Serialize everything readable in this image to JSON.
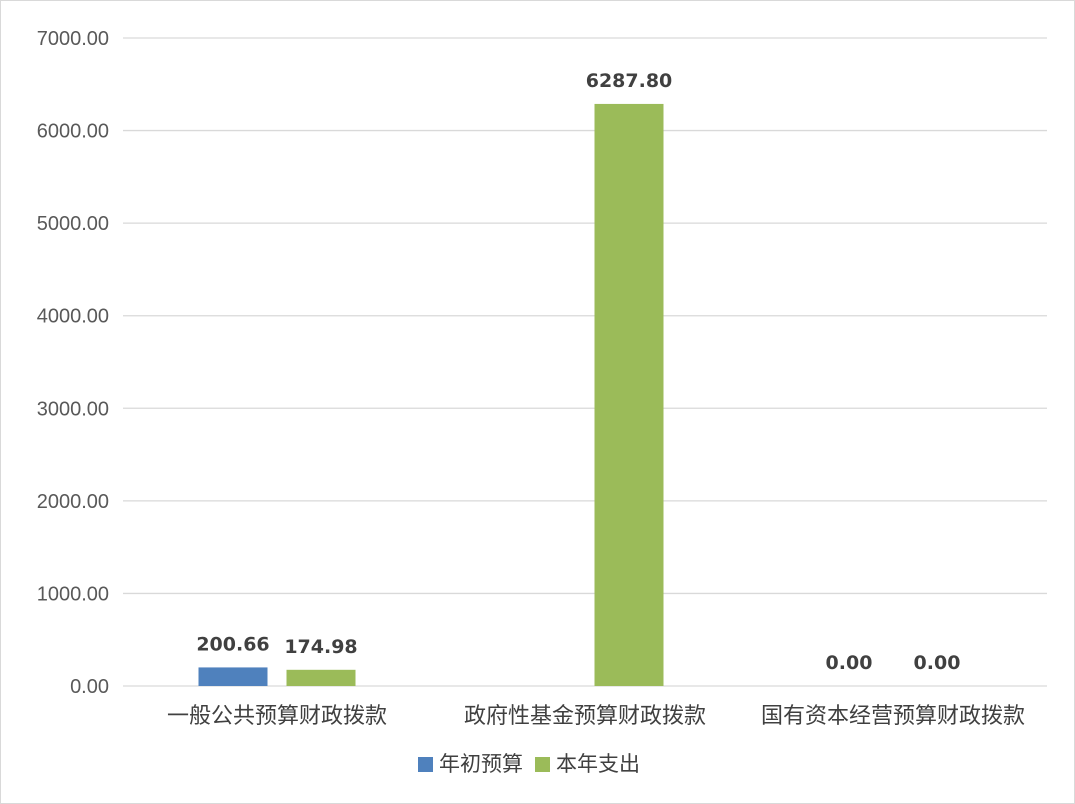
{
  "chart_data": {
    "type": "bar",
    "title": "",
    "xlabel": "",
    "ylabel": "",
    "categories": [
      "一般公共预算财政拨款",
      "政府性基金预算财政拨款",
      "国有资本经营预算财政拨款"
    ],
    "series": [
      {
        "name": "年初预算",
        "color": "#4f81bd",
        "values": [
          200.66,
          0.0,
          0.0
        ],
        "labels": [
          "200.66",
          "0.00",
          "0.00"
        ]
      },
      {
        "name": "本年支出",
        "color": "#9bbb59",
        "values": [
          174.98,
          6287.8,
          0.0
        ],
        "labels": [
          "174.98",
          "6287.80",
          "0.00"
        ]
      }
    ],
    "ylim": [
      0,
      7000
    ],
    "yticks": [
      0,
      1000,
      2000,
      3000,
      4000,
      5000,
      6000,
      7000
    ],
    "ytick_labels": [
      "0.00",
      "1000.00",
      "2000.00",
      "3000.00",
      "4000.00",
      "5000.00",
      "6000.00",
      "7000.00"
    ],
    "grid": true,
    "legend_position": "bottom",
    "show_data_labels": [
      [
        true,
        false,
        true
      ],
      [
        true,
        true,
        true
      ]
    ],
    "gridline_color": "#d9d9d9"
  }
}
